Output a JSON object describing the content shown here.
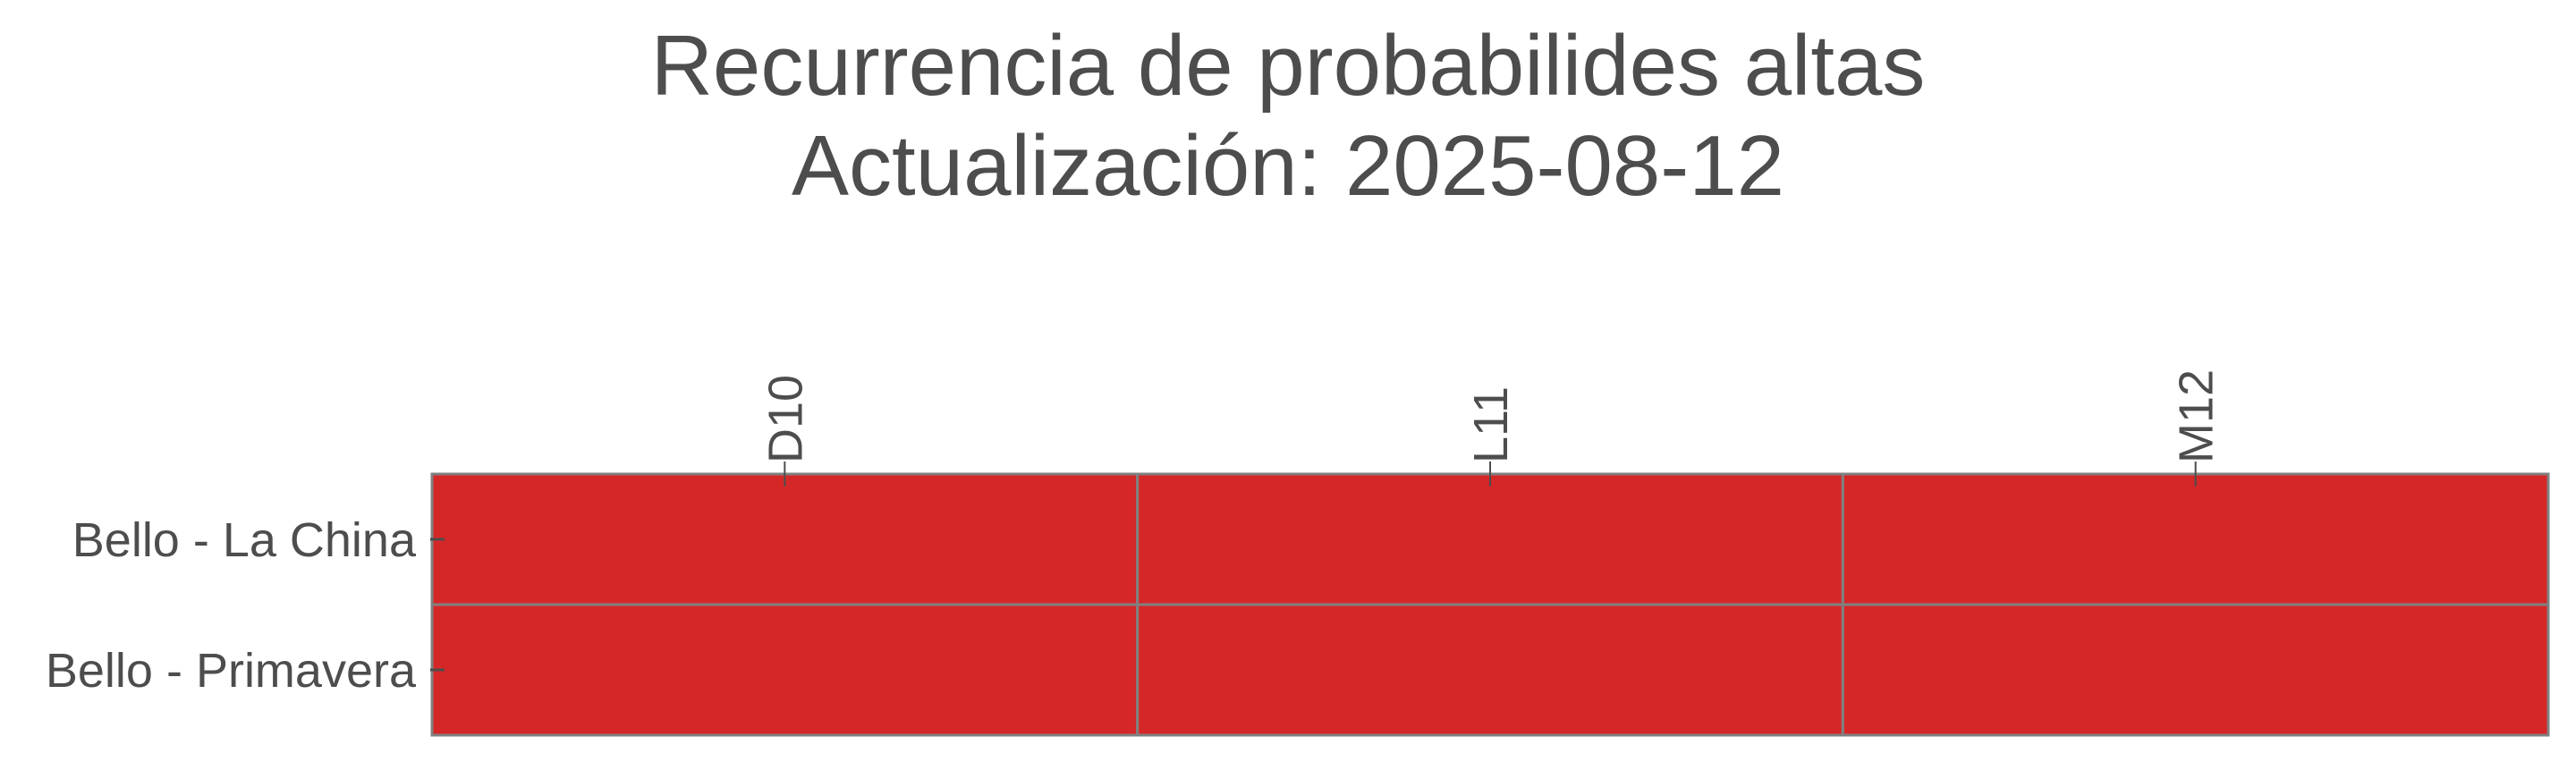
{
  "chart_data": {
    "type": "heatmap",
    "title": [
      "Recurrencia de probabilides altas",
      "Actualización: 2025-08-12"
    ],
    "x_categories": [
      "D10",
      "L11",
      "M12"
    ],
    "y_categories": [
      "Bello - La China",
      "Bello - Primavera"
    ],
    "values": [
      [
        1,
        1,
        1
      ],
      [
        1,
        1,
        1
      ]
    ],
    "cell_color": "#d62728",
    "grid_color": "#808080",
    "text_color": "#4d4d4d",
    "x_tick_position": "top",
    "x_tick_rotation": 90,
    "legend": "none"
  }
}
